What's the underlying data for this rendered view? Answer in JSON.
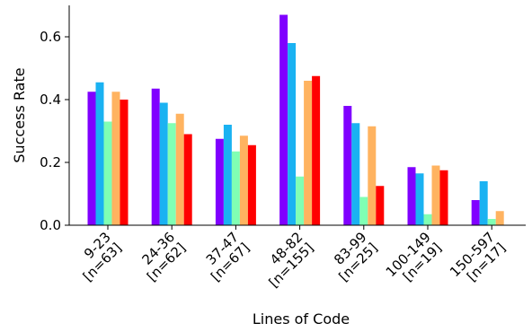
{
  "chart_data": {
    "type": "bar",
    "xlabel": "Lines of Code",
    "ylabel": "Success Rate",
    "ylim": [
      0,
      0.7
    ],
    "yticks": [
      "0.0",
      "0.2",
      "0.4",
      "0.6"
    ],
    "grid": false,
    "categories": [
      [
        "9-23",
        "[n=63]"
      ],
      [
        "24-36",
        "[n=62]"
      ],
      [
        "37-47",
        "[n=67]"
      ],
      [
        "48-82",
        "[n=155]"
      ],
      [
        "83-99",
        "[n=25]"
      ],
      [
        "100-149",
        "[n=19]"
      ],
      [
        "150-597",
        "[n=17]"
      ]
    ],
    "series": [
      {
        "color": "#8000ff",
        "values": [
          0.425,
          0.435,
          0.275,
          0.67,
          0.38,
          0.185,
          0.08
        ]
      },
      {
        "color": "#1ab2f2",
        "values": [
          0.455,
          0.39,
          0.32,
          0.58,
          0.325,
          0.165,
          0.14
        ]
      },
      {
        "color": "#80ffb4",
        "values": [
          0.33,
          0.325,
          0.235,
          0.155,
          0.09,
          0.035,
          0.02
        ]
      },
      {
        "color": "#ffb360",
        "values": [
          0.425,
          0.355,
          0.285,
          0.46,
          0.315,
          0.19,
          0.045
        ]
      },
      {
        "color": "#ff0000",
        "values": [
          0.4,
          0.29,
          0.255,
          0.475,
          0.125,
          0.175,
          0.0
        ]
      }
    ]
  }
}
